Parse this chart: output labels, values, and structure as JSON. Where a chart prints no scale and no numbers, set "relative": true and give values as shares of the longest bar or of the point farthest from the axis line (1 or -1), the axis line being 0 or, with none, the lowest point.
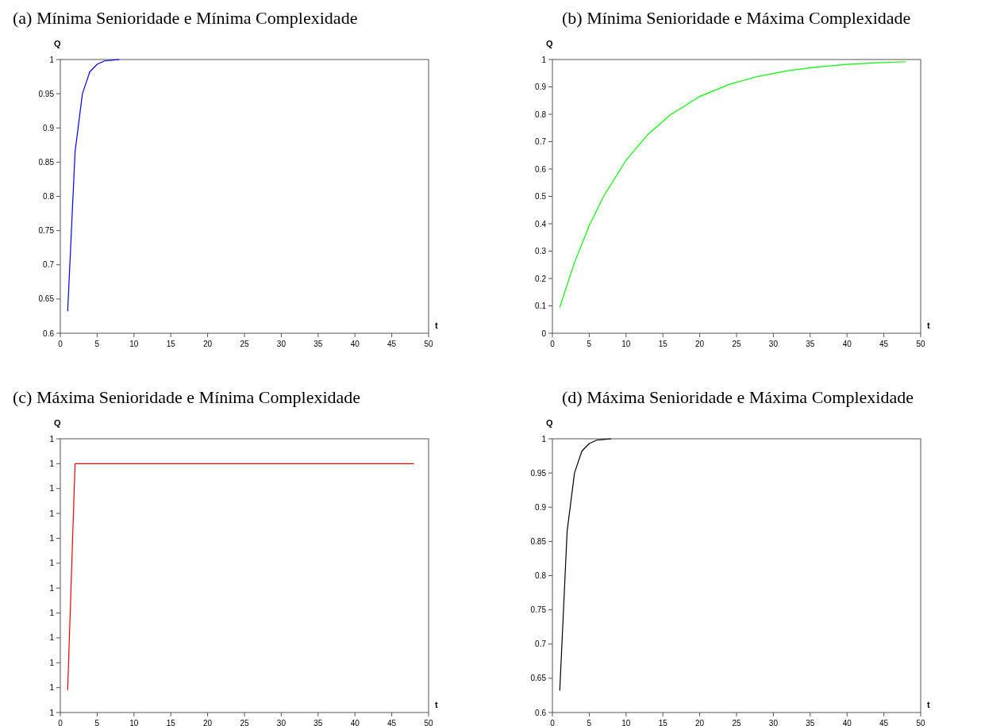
{
  "chart_data": [
    {
      "type": "line",
      "title": "(a) Mínima Senioridade e Mínima Complexidade",
      "xlabel": "t",
      "ylabel": "Q",
      "x": [
        1,
        2,
        3,
        4,
        5,
        6,
        7,
        8
      ],
      "series": [
        {
          "color": "#0000ff",
          "values": [
            0.632,
            0.865,
            0.95,
            0.982,
            0.993,
            0.998,
            0.999,
            1
          ]
        }
      ],
      "xlim": [
        0,
        50
      ],
      "ylim": [
        0.6,
        1
      ],
      "xticks": [
        0,
        5,
        10,
        15,
        20,
        25,
        30,
        35,
        40,
        45,
        50
      ],
      "yticks": [
        0.6,
        0.65,
        0.7,
        0.75,
        0.8,
        0.85,
        0.9,
        0.95,
        1
      ],
      "grid": false
    },
    {
      "type": "line",
      "title": "(b) Mínima Senioridade e Máxima Complexidade",
      "xlabel": "t",
      "ylabel": "Q",
      "x": [
        1,
        3,
        5,
        7,
        10,
        13,
        16,
        20,
        24,
        28,
        32,
        36,
        40,
        44,
        48
      ],
      "series": [
        {
          "color": "#00ff00",
          "values": [
            0.095,
            0.259,
            0.393,
            0.503,
            0.632,
            0.727,
            0.798,
            0.865,
            0.909,
            0.939,
            0.959,
            0.973,
            0.982,
            0.988,
            0.992
          ]
        }
      ],
      "xlim": [
        0,
        50
      ],
      "ylim": [
        0,
        1
      ],
      "xticks": [
        0,
        5,
        10,
        15,
        20,
        25,
        30,
        35,
        40,
        45,
        50
      ],
      "yticks": [
        0,
        0.1,
        0.2,
        0.3,
        0.4,
        0.5,
        0.6,
        0.7,
        0.8,
        0.9,
        1
      ],
      "grid": false
    },
    {
      "type": "line",
      "title": "(c) Máxima Senioridade e Mínima Complexidade",
      "xlabel": "t",
      "ylabel": "Q",
      "relative": true,
      "x": [
        1,
        2,
        48
      ],
      "series": [
        {
          "color": "#ff0000",
          "values": [
            0.09,
            1,
            1
          ]
        }
      ],
      "xlim": [
        0,
        50
      ],
      "xticks": [
        0,
        5,
        10,
        15,
        20,
        25,
        30,
        35,
        40,
        45,
        50
      ],
      "annotations": [
        "1",
        "1",
        "1",
        "1",
        "1",
        "1",
        "1",
        "1",
        "1",
        "1",
        "1",
        "1"
      ],
      "grid": false
    },
    {
      "type": "line",
      "title": "(d) Máxima Senioridade e Máxima Complexidade",
      "xlabel": "t",
      "ylabel": "Q",
      "x": [
        1,
        2,
        3,
        4,
        5,
        6,
        7,
        8
      ],
      "series": [
        {
          "color": "#000000",
          "values": [
            0.632,
            0.865,
            0.95,
            0.982,
            0.993,
            0.998,
            0.999,
            1
          ]
        }
      ],
      "xlim": [
        0,
        50
      ],
      "ylim": [
        0.6,
        1
      ],
      "xticks": [
        0,
        5,
        10,
        15,
        20,
        25,
        30,
        35,
        40,
        45,
        50
      ],
      "yticks": [
        0.6,
        0.65,
        0.7,
        0.75,
        0.8,
        0.85,
        0.9,
        0.95,
        1
      ],
      "grid": false
    }
  ]
}
